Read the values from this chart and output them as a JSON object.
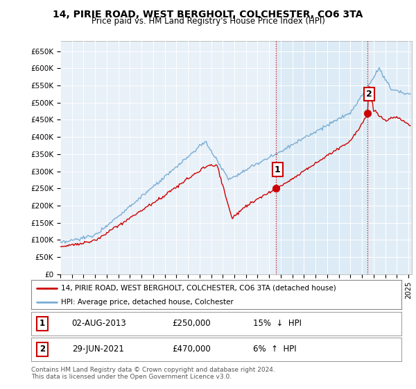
{
  "title": "14, PIRIE ROAD, WEST BERGHOLT, COLCHESTER, CO6 3TA",
  "subtitle": "Price paid vs. HM Land Registry's House Price Index (HPI)",
  "ylim": [
    0,
    680000
  ],
  "yticks": [
    0,
    50000,
    100000,
    150000,
    200000,
    250000,
    300000,
    350000,
    400000,
    450000,
    500000,
    550000,
    600000,
    650000
  ],
  "ytick_labels": [
    "£0",
    "£50K",
    "£100K",
    "£150K",
    "£200K",
    "£250K",
    "£300K",
    "£350K",
    "£400K",
    "£450K",
    "£500K",
    "£550K",
    "£600K",
    "£650K"
  ],
  "hpi_color": "#7aadd4",
  "sale_color": "#cc0000",
  "shade_color": "#d8eaf5",
  "background_color": "#ffffff",
  "plot_bg_color": "#e8f0f8",
  "grid_color": "#ffffff",
  "sale1_x": 2013.58,
  "sale1_y": 250000,
  "sale2_x": 2021.49,
  "sale2_y": 470000,
  "legend_sale": "14, PIRIE ROAD, WEST BERGHOLT, COLCHESTER, CO6 3TA (detached house)",
  "legend_hpi": "HPI: Average price, detached house, Colchester",
  "footnote": "Contains HM Land Registry data © Crown copyright and database right 2024.\nThis data is licensed under the Open Government Licence v3.0.",
  "xmin": 1995.0,
  "xmax": 2025.3
}
